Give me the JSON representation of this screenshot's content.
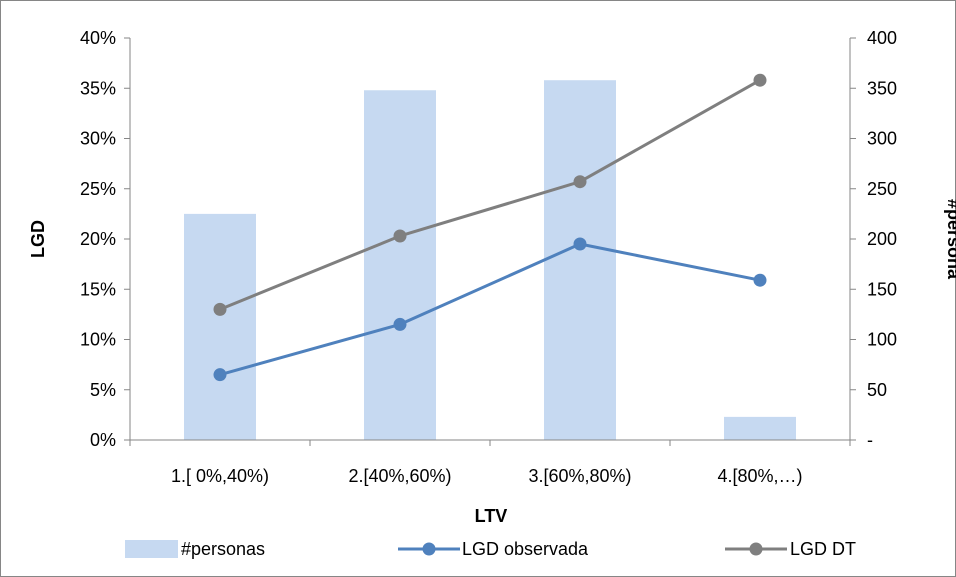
{
  "chart_data": {
    "type": "bar",
    "categories": [
      "1.[ 0%,40%)",
      "2.[40%,60%)",
      "3.[60%,80%)",
      "4.[80%,…)"
    ],
    "xlabel": "LTV",
    "ylabel": "LGD",
    "ylabel_right": "#persona",
    "left_axis": {
      "ylim": [
        0,
        0.4
      ],
      "ticks": [
        0,
        0.05,
        0.1,
        0.15,
        0.2,
        0.25,
        0.3,
        0.35,
        0.4
      ],
      "tick_labels": [
        "0%",
        "5%",
        "10%",
        "15%",
        "20%",
        "25%",
        "30%",
        "35%",
        "40%"
      ]
    },
    "right_axis": {
      "ylim": [
        0,
        400
      ],
      "ticks": [
        0,
        50,
        100,
        150,
        200,
        250,
        300,
        350,
        400
      ],
      "tick_labels": [
        "-",
        "50",
        "100",
        "150",
        "200",
        "250",
        "300",
        "350",
        "400"
      ]
    },
    "series": [
      {
        "name": "#personas",
        "type": "bar",
        "axis": "right",
        "color": "#c6d9f1",
        "values": [
          225,
          348,
          358,
          23
        ]
      },
      {
        "name": "LGD observada",
        "type": "line",
        "axis": "left",
        "color": "#4f81bd",
        "marker": "circle",
        "values": [
          0.065,
          0.115,
          0.195,
          0.159
        ]
      },
      {
        "name": "LGD DT",
        "type": "line",
        "axis": "left",
        "color": "#7f7f7f",
        "marker": "circle",
        "values": [
          0.13,
          0.203,
          0.257,
          0.358
        ]
      }
    ],
    "legend_position": "bottom",
    "grid": false
  }
}
